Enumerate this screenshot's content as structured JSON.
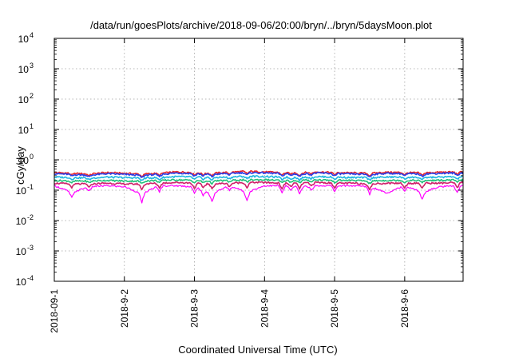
{
  "chart_data": {
    "type": "line",
    "title": "/data/run/goesPlots/archive/2018-09-06/20:00/bryn/../bryn/5daysMoon.plot",
    "xlabel": "Coordinated Universal Time (UTC)",
    "ylabel": "cGy/day",
    "yscale": "log",
    "ylim": [
      0.0001,
      10000
    ],
    "yticks": [
      {
        "base": "10",
        "exp": "-4"
      },
      {
        "base": "10",
        "exp": "-3"
      },
      {
        "base": "10",
        "exp": "-2"
      },
      {
        "base": "10",
        "exp": "-1"
      },
      {
        "base": "10",
        "exp": "0"
      },
      {
        "base": "10",
        "exp": "1"
      },
      {
        "base": "10",
        "exp": "2"
      },
      {
        "base": "10",
        "exp": "3"
      },
      {
        "base": "10",
        "exp": "4"
      }
    ],
    "xlim": [
      "2018-09-01T00:00",
      "2018-09-06T20:00"
    ],
    "xticks": [
      "2018-09-1",
      "2018-9-2",
      "2018-9-3",
      "2018-9-4",
      "2018-9-5",
      "2018-9-6"
    ],
    "xtick_dates": [
      "2018-09-01",
      "2018-09-02",
      "2018-09-03",
      "2018-09-04",
      "2018-09-05",
      "2018-09-06"
    ],
    "grid": true,
    "legend": "none",
    "series": [
      {
        "color": "#e8262b",
        "base": 0.4,
        "x": [
          "2018-09-01T00:00",
          "2018-09-01T06:00",
          "2018-09-01T12:00",
          "2018-09-01T18:00",
          "2018-09-02T00:00",
          "2018-09-02T06:00",
          "2018-09-02T12:00",
          "2018-09-02T18:00",
          "2018-09-03T00:00",
          "2018-09-03T06:00",
          "2018-09-03T12:00",
          "2018-09-03T18:00",
          "2018-09-04T00:00",
          "2018-09-04T06:00",
          "2018-09-04T12:00",
          "2018-09-04T18:00",
          "2018-09-05T00:00",
          "2018-09-05T06:00",
          "2018-09-05T12:00",
          "2018-09-05T18:00",
          "2018-09-06T00:00",
          "2018-09-06T06:00",
          "2018-09-06T12:00",
          "2018-09-06T20:00"
        ],
        "y": [
          0.38,
          0.36,
          0.34,
          0.38,
          0.36,
          0.34,
          0.36,
          0.4,
          0.38,
          0.36,
          0.39,
          0.42,
          0.4,
          0.38,
          0.37,
          0.4,
          0.38,
          0.37,
          0.36,
          0.39,
          0.38,
          0.37,
          0.39,
          0.4
        ]
      },
      {
        "color": "#2a3ee8",
        "base": 0.36,
        "x": [
          "2018-09-01T00:00",
          "2018-09-01T06:00",
          "2018-09-01T12:00",
          "2018-09-01T18:00",
          "2018-09-02T00:00",
          "2018-09-02T06:00",
          "2018-09-02T12:00",
          "2018-09-02T18:00",
          "2018-09-03T00:00",
          "2018-09-03T06:00",
          "2018-09-03T12:00",
          "2018-09-03T18:00",
          "2018-09-04T00:00",
          "2018-09-04T06:00",
          "2018-09-04T12:00",
          "2018-09-04T18:00",
          "2018-09-05T00:00",
          "2018-09-05T06:00",
          "2018-09-05T12:00",
          "2018-09-05T18:00",
          "2018-09-06T00:00",
          "2018-09-06T06:00",
          "2018-09-06T12:00",
          "2018-09-06T20:00"
        ],
        "y": [
          0.35,
          0.33,
          0.31,
          0.35,
          0.33,
          0.31,
          0.33,
          0.37,
          0.35,
          0.33,
          0.36,
          0.38,
          0.37,
          0.35,
          0.34,
          0.37,
          0.35,
          0.34,
          0.33,
          0.36,
          0.35,
          0.34,
          0.36,
          0.37
        ]
      },
      {
        "color": "#1fb6e0",
        "base": 0.27,
        "x": [
          "2018-09-01T00:00",
          "2018-09-01T06:00",
          "2018-09-01T12:00",
          "2018-09-01T18:00",
          "2018-09-02T00:00",
          "2018-09-02T06:00",
          "2018-09-02T12:00",
          "2018-09-02T18:00",
          "2018-09-03T00:00",
          "2018-09-03T06:00",
          "2018-09-03T12:00",
          "2018-09-03T18:00",
          "2018-09-04T00:00",
          "2018-09-04T06:00",
          "2018-09-04T12:00",
          "2018-09-04T18:00",
          "2018-09-05T00:00",
          "2018-09-05T06:00",
          "2018-09-05T12:00",
          "2018-09-05T18:00",
          "2018-09-06T00:00",
          "2018-09-06T06:00",
          "2018-09-06T12:00",
          "2018-09-06T20:00"
        ],
        "y": [
          0.27,
          0.26,
          0.25,
          0.27,
          0.26,
          0.25,
          0.26,
          0.28,
          0.27,
          0.26,
          0.27,
          0.29,
          0.28,
          0.27,
          0.26,
          0.28,
          0.27,
          0.26,
          0.26,
          0.27,
          0.27,
          0.26,
          0.27,
          0.28
        ]
      },
      {
        "color": "#22c07a",
        "base": 0.21,
        "x": [
          "2018-09-01T00:00",
          "2018-09-01T06:00",
          "2018-09-01T12:00",
          "2018-09-01T18:00",
          "2018-09-02T00:00",
          "2018-09-02T06:00",
          "2018-09-02T12:00",
          "2018-09-02T18:00",
          "2018-09-03T00:00",
          "2018-09-03T06:00",
          "2018-09-03T12:00",
          "2018-09-03T18:00",
          "2018-09-04T00:00",
          "2018-09-04T06:00",
          "2018-09-04T12:00",
          "2018-09-04T18:00",
          "2018-09-05T00:00",
          "2018-09-05T06:00",
          "2018-09-05T12:00",
          "2018-09-05T18:00",
          "2018-09-06T00:00",
          "2018-09-06T06:00",
          "2018-09-06T12:00",
          "2018-09-06T20:00"
        ],
        "y": [
          0.21,
          0.2,
          0.2,
          0.21,
          0.2,
          0.2,
          0.21,
          0.22,
          0.21,
          0.2,
          0.21,
          0.22,
          0.22,
          0.21,
          0.21,
          0.22,
          0.21,
          0.21,
          0.2,
          0.21,
          0.21,
          0.21,
          0.21,
          0.22
        ]
      },
      {
        "color": "#d0206a",
        "base": 0.17,
        "x": [
          "2018-09-01T00:00",
          "2018-09-01T06:00",
          "2018-09-01T12:00",
          "2018-09-01T18:00",
          "2018-09-02T00:00",
          "2018-09-02T06:00",
          "2018-09-02T12:00",
          "2018-09-02T18:00",
          "2018-09-03T00:00",
          "2018-09-03T06:00",
          "2018-09-03T12:00",
          "2018-09-03T18:00",
          "2018-09-04T00:00",
          "2018-09-04T06:00",
          "2018-09-04T12:00",
          "2018-09-04T18:00",
          "2018-09-05T00:00",
          "2018-09-05T06:00",
          "2018-09-05T12:00",
          "2018-09-05T18:00",
          "2018-09-06T00:00",
          "2018-09-06T06:00",
          "2018-09-06T12:00",
          "2018-09-06T20:00"
        ],
        "y": [
          0.17,
          0.16,
          0.16,
          0.17,
          0.16,
          0.16,
          0.17,
          0.18,
          0.17,
          0.16,
          0.17,
          0.18,
          0.18,
          0.17,
          0.17,
          0.18,
          0.17,
          0.17,
          0.16,
          0.17,
          0.17,
          0.17,
          0.17,
          0.18
        ]
      },
      {
        "color": "#ff00ff",
        "base": 0.14,
        "x": [
          "2018-09-01T00:00",
          "2018-09-01T06:00",
          "2018-09-01T12:00",
          "2018-09-01T18:00",
          "2018-09-02T00:00",
          "2018-09-02T06:00",
          "2018-09-02T12:00",
          "2018-09-02T18:00",
          "2018-09-03T00:00",
          "2018-09-03T06:00",
          "2018-09-03T12:00",
          "2018-09-03T18:00",
          "2018-09-04T00:00",
          "2018-09-04T06:00",
          "2018-09-04T12:00",
          "2018-09-04T18:00",
          "2018-09-05T00:00",
          "2018-09-05T06:00",
          "2018-09-05T12:00",
          "2018-09-05T18:00",
          "2018-09-06T00:00",
          "2018-09-06T06:00",
          "2018-09-06T12:00",
          "2018-09-06T20:00"
        ],
        "y": [
          0.14,
          0.08,
          0.13,
          0.14,
          0.13,
          0.07,
          0.14,
          0.14,
          0.13,
          0.07,
          0.14,
          0.08,
          0.14,
          0.14,
          0.13,
          0.14,
          0.14,
          0.14,
          0.13,
          0.08,
          0.14,
          0.08,
          0.13,
          0.14
        ]
      }
    ]
  }
}
